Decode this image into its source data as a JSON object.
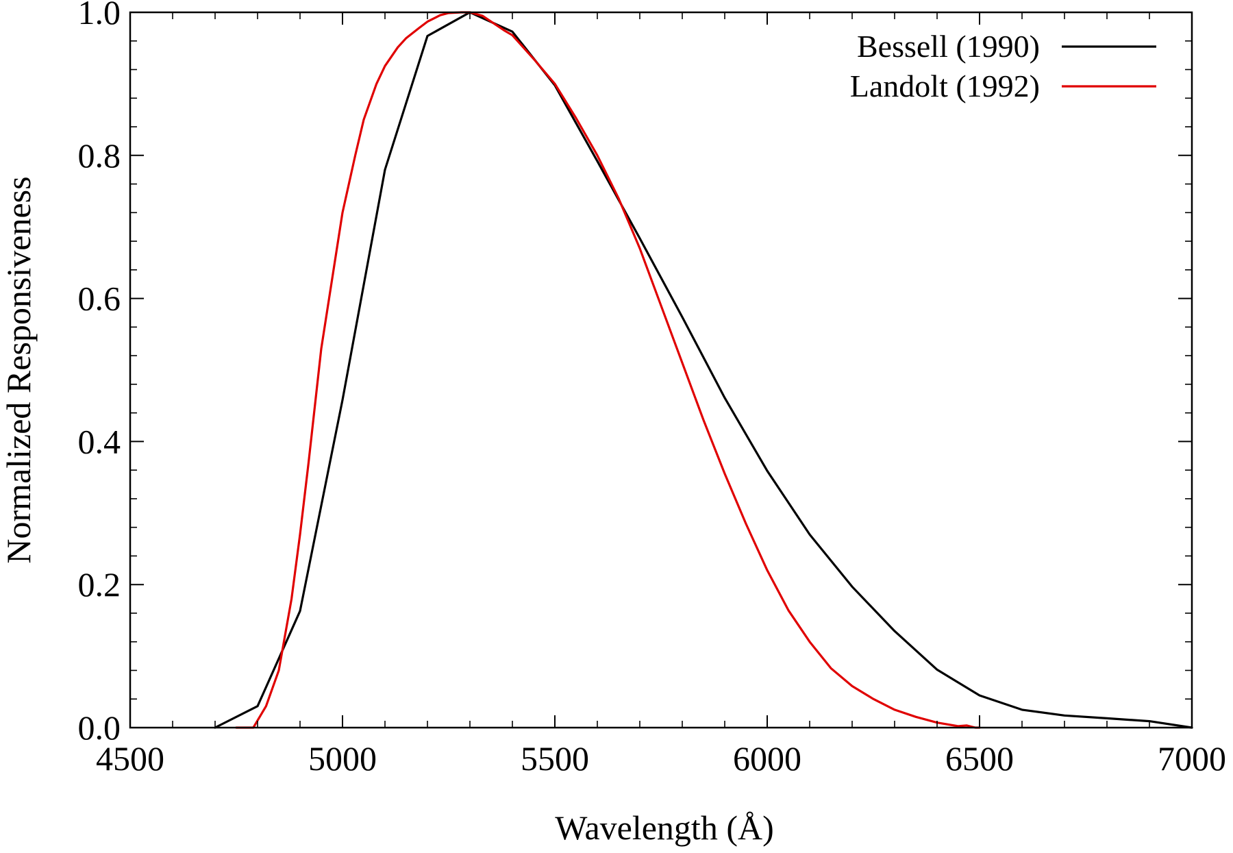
{
  "chart_data": {
    "type": "line",
    "title": "",
    "xlabel": "Wavelength (Å)",
    "ylabel": "Normalized Responsiveness",
    "xlim": [
      4500,
      7000
    ],
    "ylim": [
      0.0,
      1.0
    ],
    "x_ticks": [
      4500,
      5000,
      5500,
      6000,
      6500,
      7000
    ],
    "x_tick_labels": [
      "4500",
      "5000",
      "5500",
      "6000",
      "6500",
      "7000"
    ],
    "y_ticks": [
      0.0,
      0.2,
      0.4,
      0.6,
      0.8,
      1.0
    ],
    "y_tick_labels": [
      "0.0",
      "0.2",
      "0.4",
      "0.6",
      "0.8",
      "1.0"
    ],
    "x_minor_step": 100,
    "y_minor_step": 0.04,
    "grid": false,
    "legend_position": "top-right",
    "series": [
      {
        "name": "Bessell (1990)",
        "color": "#000000",
        "x": [
          4700,
          4800,
          4900,
          5000,
          5100,
          5200,
          5300,
          5400,
          5500,
          5600,
          5700,
          5800,
          5900,
          6000,
          6100,
          6200,
          6300,
          6400,
          6500,
          6600,
          6700,
          6800,
          6900,
          7000
        ],
        "y": [
          0.0,
          0.03,
          0.163,
          0.458,
          0.78,
          0.967,
          1.0,
          0.973,
          0.898,
          0.792,
          0.684,
          0.574,
          0.461,
          0.359,
          0.27,
          0.197,
          0.135,
          0.081,
          0.045,
          0.025,
          0.017,
          0.013,
          0.009,
          0.0
        ]
      },
      {
        "name": "Landolt (1992)",
        "color": "#e00000",
        "x": [
          4750,
          4790,
          4800,
          4820,
          4850,
          4880,
          4900,
          4920,
          4950,
          5000,
          5030,
          5050,
          5080,
          5100,
          5130,
          5150,
          5180,
          5200,
          5230,
          5250,
          5280,
          5300,
          5330,
          5350,
          5380,
          5400,
          5450,
          5500,
          5550,
          5600,
          5650,
          5700,
          5750,
          5800,
          5850,
          5900,
          5950,
          6000,
          6050,
          6100,
          6150,
          6200,
          6250,
          6300,
          6350,
          6400,
          6450,
          6470,
          6490,
          6500
        ],
        "y": [
          0.0,
          0.0,
          0.01,
          0.03,
          0.08,
          0.18,
          0.27,
          0.37,
          0.53,
          0.72,
          0.8,
          0.85,
          0.9,
          0.925,
          0.951,
          0.964,
          0.978,
          0.987,
          0.996,
          0.999,
          1.0,
          1.0,
          0.995,
          0.987,
          0.975,
          0.968,
          0.935,
          0.9,
          0.852,
          0.8,
          0.74,
          0.67,
          0.59,
          0.51,
          0.43,
          0.355,
          0.285,
          0.22,
          0.164,
          0.12,
          0.083,
          0.058,
          0.04,
          0.025,
          0.015,
          0.007,
          0.002,
          0.003,
          0.0,
          0.0
        ]
      }
    ]
  }
}
